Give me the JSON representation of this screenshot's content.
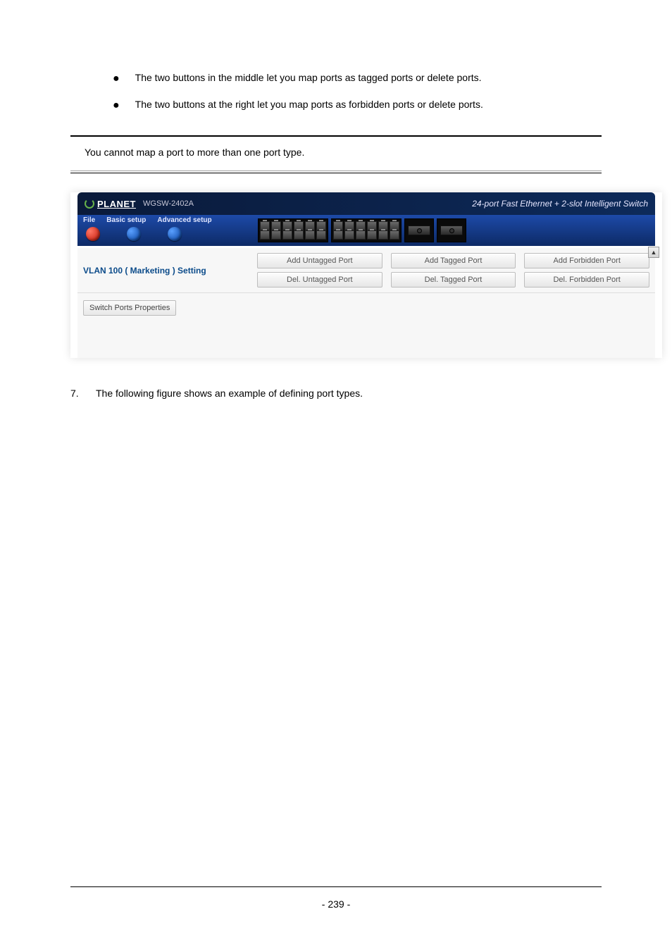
{
  "bullets": {
    "b1": "The two buttons in the middle let you map ports as tagged ports or delete ports.",
    "b2": "The two buttons at the right let you map ports as forbidden ports or delete ports."
  },
  "note": "You cannot map a port to more than one port type.",
  "header": {
    "brand": "PLANET",
    "model": "WGSW-2402A",
    "tagline": "24-port Fast Ethernet + 2-slot Intelligent Switch"
  },
  "menu": {
    "file": "File",
    "basic": "Basic setup",
    "advanced": "Advanced setup"
  },
  "vlan": {
    "title": "VLAN 100 ( Marketing ) Setting",
    "add_untagged": "Add Untagged Port",
    "del_untagged": "Del. Untagged Port",
    "add_tagged": "Add Tagged Port",
    "del_tagged": "Del. Tagged Port",
    "add_forbidden": "Add Forbidden Port",
    "del_forbidden": "Del. Forbidden Port"
  },
  "switch_ports_btn": "Switch Ports Properties",
  "step7": {
    "num": "7.",
    "text": "The following figure shows an example of defining port types."
  },
  "page_num": "- 239 -",
  "colors": {
    "header_bg_dark": "#0a1a3a",
    "header_bg_light": "#0d2a5a",
    "menu_bg_top": "#1d4aa8",
    "menu_bg_bottom": "#0d2a66",
    "vlan_title_color": "#0b4b8a",
    "btn_text_color": "#555555"
  }
}
